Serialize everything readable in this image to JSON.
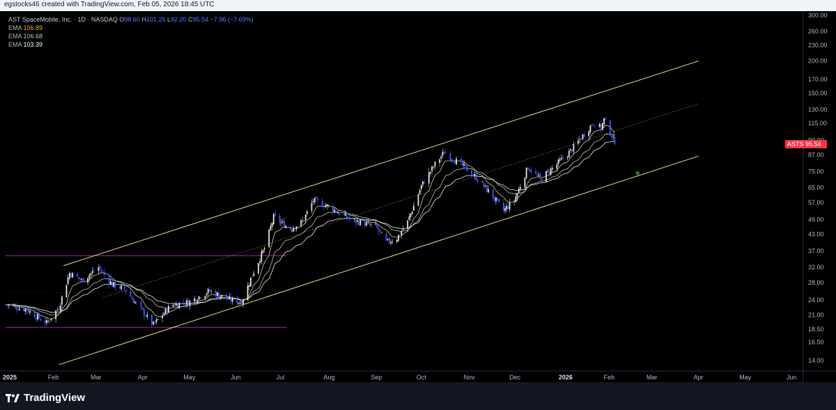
{
  "header": {
    "attribution": "egstocks46 created with TradingView.com, Feb 05, 2026 18:45 UTC"
  },
  "legend": {
    "symbol_line": "AST SpaceMobile, Inc. · 1D · NASDAQ",
    "ohlc": {
      "o_label": "O",
      "o_value": "98.60",
      "h_label": "H",
      "h_value": "101.25",
      "l_label": "L",
      "l_value": "92.20",
      "c_label": "C",
      "c_value": "95.54",
      "change": "−7.96 (−7.69%)"
    },
    "emas": [
      {
        "label": "EMA",
        "value": "106.89",
        "color": "#f0b429"
      },
      {
        "label": "EMA",
        "value": "106.68",
        "color": "#a5d6a7"
      },
      {
        "label": "EMA",
        "value": "103.39",
        "color": "#ffffff"
      }
    ]
  },
  "price_tag": {
    "symbol": "ASTS",
    "value": "95.54",
    "color": "#f23645"
  },
  "brand": {
    "name": "TradingView"
  },
  "colors": {
    "channel": "#d8cc7a",
    "range_box": "#9c27b0",
    "candle_up": "#e6e6e6",
    "candle_down": "#3d5afe",
    "marker": "#4caf50"
  },
  "chart_data": {
    "type": "line",
    "symbol": "ASTS",
    "scale": "log",
    "ylim": [
      12.5,
      310
    ],
    "y_ticks": [
      "300.00",
      "260.00",
      "230.00",
      "200.00",
      "170.00",
      "150.00",
      "130.00",
      "115.00",
      "99.00",
      "87.00",
      "75.00",
      "65.00",
      "57.00",
      "49.00",
      "43.00",
      "37.00",
      "32.00",
      "28.00",
      "24.00",
      "21.00",
      "18.50",
      "16.50",
      "14.00"
    ],
    "x_ticks": [
      {
        "label": "2025",
        "date": "2025-01-01",
        "bold": true
      },
      {
        "label": "Feb",
        "date": "2025-02-01"
      },
      {
        "label": "Mar",
        "date": "2025-03-01"
      },
      {
        "label": "Apr",
        "date": "2025-04-01"
      },
      {
        "label": "May",
        "date": "2025-05-01"
      },
      {
        "label": "Jun",
        "date": "2025-06-01"
      },
      {
        "label": "Jul",
        "date": "2025-07-01"
      },
      {
        "label": "Aug",
        "date": "2025-08-01"
      },
      {
        "label": "Sep",
        "date": "2025-09-01"
      },
      {
        "label": "Oct",
        "date": "2025-10-01"
      },
      {
        "label": "Nov",
        "date": "2025-11-01"
      },
      {
        "label": "Dec",
        "date": "2025-12-01"
      },
      {
        "label": "2026",
        "date": "2026-01-01",
        "bold": true
      },
      {
        "label": "Feb",
        "date": "2026-02-01"
      },
      {
        "label": "Mar",
        "date": "2026-03-01"
      },
      {
        "label": "Apr",
        "date": "2026-04-01"
      },
      {
        "label": "May",
        "date": "2026-05-01"
      },
      {
        "label": "Jun",
        "date": "2026-06-01"
      }
    ],
    "price_path": [
      {
        "x": "2025-01-01",
        "y": 23
      },
      {
        "x": "2025-01-15",
        "y": 22
      },
      {
        "x": "2025-01-28",
        "y": 19.5
      },
      {
        "x": "2025-02-05",
        "y": 22.5
      },
      {
        "x": "2025-02-12",
        "y": 30.5
      },
      {
        "x": "2025-02-20",
        "y": 28.5
      },
      {
        "x": "2025-03-03",
        "y": 32
      },
      {
        "x": "2025-03-12",
        "y": 27.5
      },
      {
        "x": "2025-03-20",
        "y": 26.5
      },
      {
        "x": "2025-04-08",
        "y": 19.2
      },
      {
        "x": "2025-04-20",
        "y": 23
      },
      {
        "x": "2025-05-01",
        "y": 23.5
      },
      {
        "x": "2025-05-15",
        "y": 26
      },
      {
        "x": "2025-05-28",
        "y": 24
      },
      {
        "x": "2025-06-05",
        "y": 23.5
      },
      {
        "x": "2025-06-12",
        "y": 30
      },
      {
        "x": "2025-06-20",
        "y": 38
      },
      {
        "x": "2025-06-26",
        "y": 50
      },
      {
        "x": "2025-07-07",
        "y": 45
      },
      {
        "x": "2025-07-15",
        "y": 48
      },
      {
        "x": "2025-07-22",
        "y": 58
      },
      {
        "x": "2025-08-01",
        "y": 55
      },
      {
        "x": "2025-08-15",
        "y": 49
      },
      {
        "x": "2025-09-01",
        "y": 46
      },
      {
        "x": "2025-09-08",
        "y": 40
      },
      {
        "x": "2025-09-15",
        "y": 41.5
      },
      {
        "x": "2025-09-22",
        "y": 48
      },
      {
        "x": "2025-10-01",
        "y": 66
      },
      {
        "x": "2025-10-10",
        "y": 80
      },
      {
        "x": "2025-10-16",
        "y": 89
      },
      {
        "x": "2025-10-28",
        "y": 79
      },
      {
        "x": "2025-11-05",
        "y": 72
      },
      {
        "x": "2025-11-15",
        "y": 62
      },
      {
        "x": "2025-11-24",
        "y": 53
      },
      {
        "x": "2025-12-01",
        "y": 58
      },
      {
        "x": "2025-12-10",
        "y": 78
      },
      {
        "x": "2025-12-18",
        "y": 70
      },
      {
        "x": "2025-12-29",
        "y": 80
      },
      {
        "x": "2026-01-07",
        "y": 90
      },
      {
        "x": "2026-01-15",
        "y": 103
      },
      {
        "x": "2026-01-22",
        "y": 116
      },
      {
        "x": "2026-01-27",
        "y": 110
      },
      {
        "x": "2026-01-29",
        "y": 119
      },
      {
        "x": "2026-02-03",
        "y": 103
      },
      {
        "x": "2026-02-05",
        "y": 95.54
      }
    ],
    "channel": {
      "upper": [
        {
          "x": "2025-02-08",
          "y": 32.5
        },
        {
          "x": "2026-04-01",
          "y": 200
        }
      ],
      "middle": [
        {
          "x": "2025-03-06",
          "y": 24.5
        },
        {
          "x": "2026-04-01",
          "y": 137
        }
      ],
      "lower": [
        {
          "x": "2025-02-05",
          "y": 13.5
        },
        {
          "x": "2026-04-01",
          "y": 86
        }
      ]
    },
    "range_box": {
      "top": 35.5,
      "middle": 25.6,
      "bottom": 18.8,
      "x_start": "2025-01-01",
      "x_end": "2025-07-01"
    },
    "marker": {
      "x": "2026-02-20",
      "y": 73,
      "symbol": "*"
    }
  }
}
